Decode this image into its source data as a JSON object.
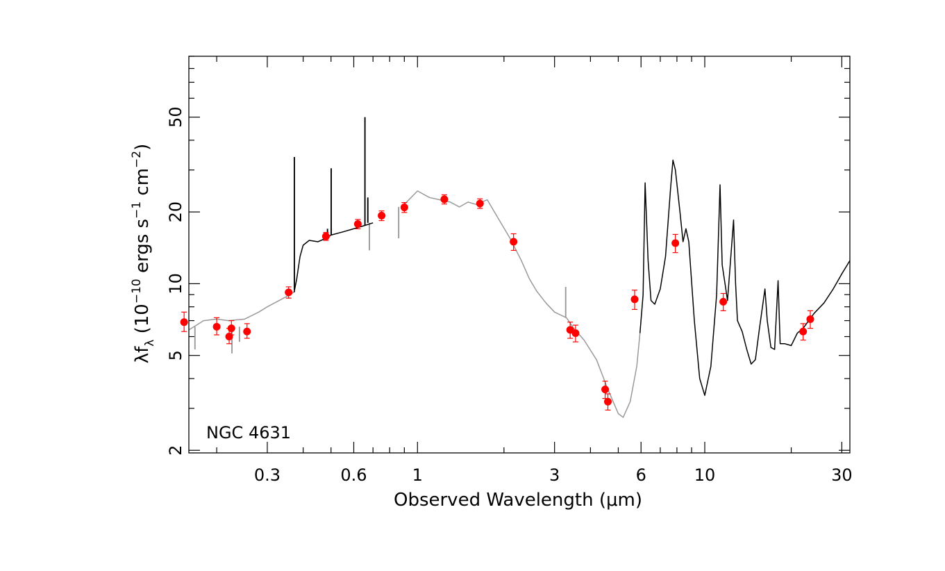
{
  "chart_data": {
    "type": "scatter",
    "annotation": "NGC 4631",
    "xlabel": "Observed Wavelength (μm)",
    "ylabel_parts": {
      "lambda_f": "λf",
      "sub": "λ",
      "unit_open": " (10",
      "exp1": "−10",
      "ergs": " ergs s",
      "exp2": "−1",
      "cm": " cm",
      "exp3": "−2",
      "close": ")"
    },
    "x_scale": "log",
    "y_scale": "log",
    "xlim": [
      0.16,
      32
    ],
    "ylim": [
      1.95,
      90
    ],
    "x_ticks": [
      {
        "value": 0.3,
        "label": "0.3"
      },
      {
        "value": 0.6,
        "label": "0.6"
      },
      {
        "value": 1,
        "label": "1"
      },
      {
        "value": 3,
        "label": "3"
      },
      {
        "value": 6,
        "label": "6"
      },
      {
        "value": 10,
        "label": "10"
      },
      {
        "value": 30,
        "label": "30"
      }
    ],
    "y_ticks": [
      {
        "value": 2,
        "label": "2"
      },
      {
        "value": 5,
        "label": "5"
      },
      {
        "value": 10,
        "label": "10"
      },
      {
        "value": 20,
        "label": "20"
      },
      {
        "value": 50,
        "label": "50"
      }
    ],
    "colors": {
      "photometry": "#ff0000",
      "model_sed": "#999999",
      "observed_spectrum": "#000000"
    },
    "series": [
      {
        "type": "scatter",
        "points": [
          {
            "x": 0.154,
            "y": 6.9,
            "yerr_hi": 0.7,
            "yerr_lo": 0.6
          },
          {
            "x": 0.2,
            "y": 6.6,
            "yerr_hi": 0.6,
            "yerr_lo": 0.5
          },
          {
            "x": 0.221,
            "y": 6.0,
            "yerr_hi": 0.5,
            "yerr_lo": 0.4
          },
          {
            "x": 0.225,
            "y": 6.5,
            "yerr_hi": 0.5,
            "yerr_lo": 0.4
          },
          {
            "x": 0.255,
            "y": 6.3,
            "yerr_hi": 0.5,
            "yerr_lo": 0.4
          },
          {
            "x": 0.356,
            "y": 9.2,
            "yerr_hi": 0.5,
            "yerr_lo": 0.5
          },
          {
            "x": 0.48,
            "y": 15.8,
            "yerr_hi": 0.6,
            "yerr_lo": 0.6
          },
          {
            "x": 0.62,
            "y": 17.8,
            "yerr_hi": 0.8,
            "yerr_lo": 0.8
          },
          {
            "x": 0.75,
            "y": 19.3,
            "yerr_hi": 0.9,
            "yerr_lo": 0.9
          },
          {
            "x": 0.9,
            "y": 20.9,
            "yerr_hi": 1.0,
            "yerr_lo": 1.0
          },
          {
            "x": 1.24,
            "y": 22.6,
            "yerr_hi": 1.0,
            "yerr_lo": 1.0
          },
          {
            "x": 1.65,
            "y": 21.7,
            "yerr_hi": 1.0,
            "yerr_lo": 1.0
          },
          {
            "x": 2.16,
            "y": 15.0,
            "yerr_hi": 1.2,
            "yerr_lo": 1.2
          },
          {
            "x": 3.4,
            "y": 6.4,
            "yerr_hi": 0.5,
            "yerr_lo": 0.5
          },
          {
            "x": 3.55,
            "y": 6.2,
            "yerr_hi": 0.5,
            "yerr_lo": 0.5
          },
          {
            "x": 4.5,
            "y": 3.6,
            "yerr_hi": 0.3,
            "yerr_lo": 0.3
          },
          {
            "x": 4.6,
            "y": 3.2,
            "yerr_hi": 0.25,
            "yerr_lo": 0.25
          },
          {
            "x": 5.7,
            "y": 8.6,
            "yerr_hi": 0.8,
            "yerr_lo": 0.8
          },
          {
            "x": 7.9,
            "y": 14.8,
            "yerr_hi": 1.3,
            "yerr_lo": 1.3
          },
          {
            "x": 11.6,
            "y": 8.4,
            "yerr_hi": 0.7,
            "yerr_lo": 0.7
          },
          {
            "x": 22.0,
            "y": 6.3,
            "yerr_hi": 0.5,
            "yerr_lo": 0.5
          },
          {
            "x": 23.3,
            "y": 7.1,
            "yerr_hi": 0.6,
            "yerr_lo": 0.6
          }
        ]
      },
      {
        "type": "line",
        "segments": [
          [
            [
              0.16,
              6.4
            ],
            [
              0.17,
              6.7
            ],
            [
              0.18,
              7.0
            ],
            [
              0.2,
              7.1
            ],
            [
              0.22,
              7.0
            ],
            [
              0.25,
              7.1
            ],
            [
              0.28,
              7.6
            ],
            [
              0.3,
              8.0
            ],
            [
              0.33,
              8.5
            ],
            [
              0.36,
              9.0
            ],
            [
              0.375,
              9.3
            ]
          ],
          [
            [
              0.9,
              21.5
            ],
            [
              1.0,
              24.5
            ],
            [
              1.1,
              23.0
            ],
            [
              1.3,
              22.0
            ],
            [
              1.4,
              21.0
            ],
            [
              1.5,
              22.0
            ],
            [
              1.6,
              21.5
            ],
            [
              1.75,
              22.5
            ],
            [
              1.9,
              19.0
            ],
            [
              2.1,
              15.5
            ],
            [
              2.3,
              12.5
            ],
            [
              2.45,
              10.5
            ],
            [
              2.6,
              9.3
            ],
            [
              2.8,
              8.3
            ],
            [
              3.0,
              7.6
            ],
            [
              3.3,
              7.2
            ],
            [
              3.5,
              6.5
            ],
            [
              3.8,
              5.8
            ],
            [
              4.2,
              4.8
            ],
            [
              4.6,
              3.6
            ],
            [
              5.0,
              2.85
            ],
            [
              5.2,
              2.75
            ],
            [
              5.5,
              3.2
            ],
            [
              5.8,
              4.5
            ],
            [
              5.95,
              6.2
            ]
          ]
        ],
        "spikes": [
          {
            "x": 3.28,
            "base": 7.2,
            "peak": 9.7
          },
          {
            "x": 0.68,
            "base": 18.0,
            "peak": 13.8
          },
          {
            "x": 0.168,
            "base": 6.6,
            "peak": 5.3
          },
          {
            "x": 0.226,
            "base": 6.5,
            "peak": 5.1
          },
          {
            "x": 0.24,
            "base": 6.6,
            "peak": 5.7
          },
          {
            "x": 0.86,
            "base": 21.0,
            "peak": 15.5
          }
        ]
      },
      {
        "type": "line",
        "segments": [
          [
            [
              0.372,
              9.2
            ],
            [
              0.38,
              10.5
            ],
            [
              0.39,
              13.0
            ],
            [
              0.4,
              14.5
            ],
            [
              0.42,
              15.2
            ],
            [
              0.45,
              15.0
            ],
            [
              0.48,
              15.5
            ],
            [
              0.5,
              16.0
            ],
            [
              0.55,
              16.5
            ],
            [
              0.6,
              17.0
            ],
            [
              0.65,
              17.5
            ],
            [
              0.7,
              18.0
            ]
          ],
          [
            [
              5.95,
              6.2
            ],
            [
              6.1,
              9.0
            ],
            [
              6.2,
              26.5
            ],
            [
              6.35,
              12.5
            ],
            [
              6.5,
              8.5
            ],
            [
              6.7,
              8.2
            ],
            [
              7.0,
              9.5
            ],
            [
              7.3,
              13.0
            ],
            [
              7.6,
              25.0
            ],
            [
              7.75,
              33.0
            ],
            [
              7.9,
              30.0
            ],
            [
              8.2,
              20.0
            ],
            [
              8.4,
              15.0
            ],
            [
              8.6,
              17.0
            ],
            [
              8.8,
              15.0
            ],
            [
              9.2,
              7.0
            ],
            [
              9.6,
              4.0
            ],
            [
              10.0,
              3.4
            ],
            [
              10.5,
              4.5
            ],
            [
              11.0,
              9.0
            ],
            [
              11.3,
              26.0
            ],
            [
              11.5,
              12.0
            ],
            [
              12.0,
              8.5
            ],
            [
              12.6,
              18.5
            ],
            [
              12.8,
              10.0
            ],
            [
              13.0,
              7.0
            ],
            [
              13.5,
              6.3
            ],
            [
              14.0,
              5.3
            ],
            [
              14.5,
              4.6
            ],
            [
              15.0,
              4.8
            ],
            [
              15.5,
              6.5
            ],
            [
              16.2,
              9.5
            ],
            [
              16.5,
              7.0
            ],
            [
              17.0,
              5.4
            ],
            [
              17.5,
              5.3
            ],
            [
              18.0,
              10.3
            ],
            [
              18.3,
              5.6
            ],
            [
              19.0,
              5.6
            ],
            [
              20.0,
              5.5
            ],
            [
              21.0,
              6.2
            ],
            [
              22.0,
              6.5
            ],
            [
              24.0,
              7.5
            ],
            [
              26.0,
              8.3
            ],
            [
              28.0,
              9.5
            ],
            [
              30.0,
              11.0
            ],
            [
              32.0,
              12.5
            ]
          ]
        ],
        "spikes": [
          {
            "x": 0.3727,
            "base": 9.4,
            "peak": 34.0
          },
          {
            "x": 0.5007,
            "base": 16.0,
            "peak": 30.5
          },
          {
            "x": 0.6563,
            "base": 17.5,
            "peak": 50.0
          },
          {
            "x": 0.6716,
            "base": 18.0,
            "peak": 23.0
          },
          {
            "x": 0.4861,
            "base": 15.6,
            "peak": 17.0
          }
        ]
      }
    ]
  }
}
